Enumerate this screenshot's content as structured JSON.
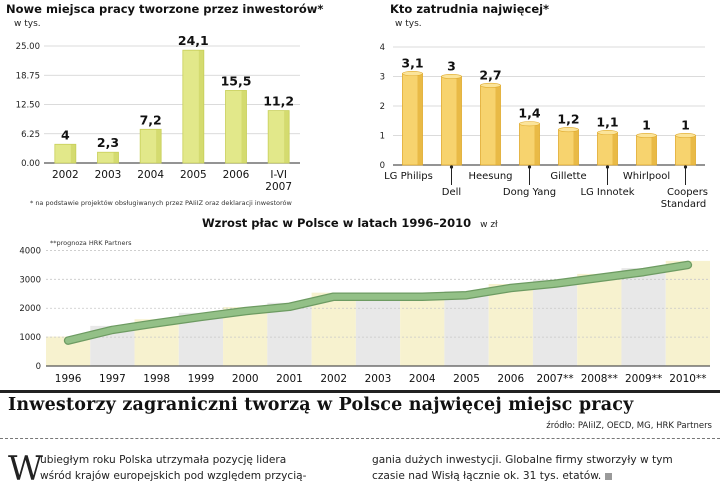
{
  "chart_data": [
    {
      "type": "bar",
      "title": "Nowe miejsca pracy tworzone przez inwestorów*",
      "unit": "w tys.",
      "categories": [
        "2002",
        "2003",
        "2004",
        "2005",
        "2006",
        "I-VI 2007"
      ],
      "values": [
        4,
        2.3,
        7.2,
        24.1,
        15.5,
        11.2
      ],
      "value_labels": [
        "4",
        "2,3",
        "7,2",
        "24,1",
        "15,5",
        "11,2"
      ],
      "yticks": [
        "0.00",
        "6.25",
        "12.50",
        "18.75",
        "25.00"
      ],
      "ylim": [
        0,
        25
      ],
      "footnote": "* na podstawie projektów obsługiwanych przez PAIiIZ oraz deklaracji inwestorów",
      "colors": {
        "bar": "#e2e88a",
        "bar_dark": "#c8cf5a"
      }
    },
    {
      "type": "bar",
      "title": "Kto zatrudnia najwięcej*",
      "unit": "w tys.",
      "categories": [
        "LG Philips",
        "Dell",
        "Heesung",
        "Dong Yang",
        "Gillette",
        "LG Innotek",
        "Whirlpool",
        "Coopers Standard"
      ],
      "values": [
        3.1,
        3,
        2.7,
        1.4,
        1.2,
        1.1,
        1,
        1
      ],
      "value_labels": [
        "3,1",
        "3",
        "2,7",
        "1,4",
        "1,2",
        "1,1",
        "1",
        "1"
      ],
      "yticks": [
        "0",
        "1",
        "2",
        "3",
        "4"
      ],
      "ylim": [
        0,
        4
      ],
      "colors": {
        "bar": "#f7d36e",
        "bar_dark": "#e0aa2c"
      }
    },
    {
      "type": "line",
      "title": "Wzrost płac w Polsce w latach 1996–2010",
      "unit": "w zł",
      "note": "**prognoza HRK Partners",
      "categories": [
        "1996",
        "1997",
        "1998",
        "1999",
        "2000",
        "2001",
        "2002",
        "2003",
        "2004",
        "2005",
        "2006",
        "2007**",
        "2008**",
        "2009**",
        "2010**"
      ],
      "values": [
        880,
        1250,
        1480,
        1700,
        1900,
        2050,
        2400,
        2400,
        2400,
        2450,
        2700,
        2850,
        3050,
        3250,
        3500
      ],
      "yticks": [
        "0",
        "1000",
        "2000",
        "3000",
        "4000"
      ],
      "ylim": [
        0,
        4500
      ],
      "colors": {
        "line": "#93c087",
        "line_edge": "#6d9b62",
        "band_a": "#f7f2cf",
        "band_b": "#e8e8e8"
      }
    }
  ],
  "article": {
    "headline": "Inwestorzy zagraniczni tworzą w Polsce najwięcej miejsc pracy",
    "source": "źródło: PAIiIZ, OECD, MG, HRK Partners",
    "dropcap": "W",
    "col1_line1": "ubiegłym roku Polska utrzymała pozycję lidera",
    "col1_line2": "wśród krajów europejskich pod względem przycią-",
    "col2_line1": "gania dużych inwestycji. Globalne firmy stworzyły w tym",
    "col2_line2": "czasie nad Wisłą łącznie ok. 31 tys. etatów."
  }
}
